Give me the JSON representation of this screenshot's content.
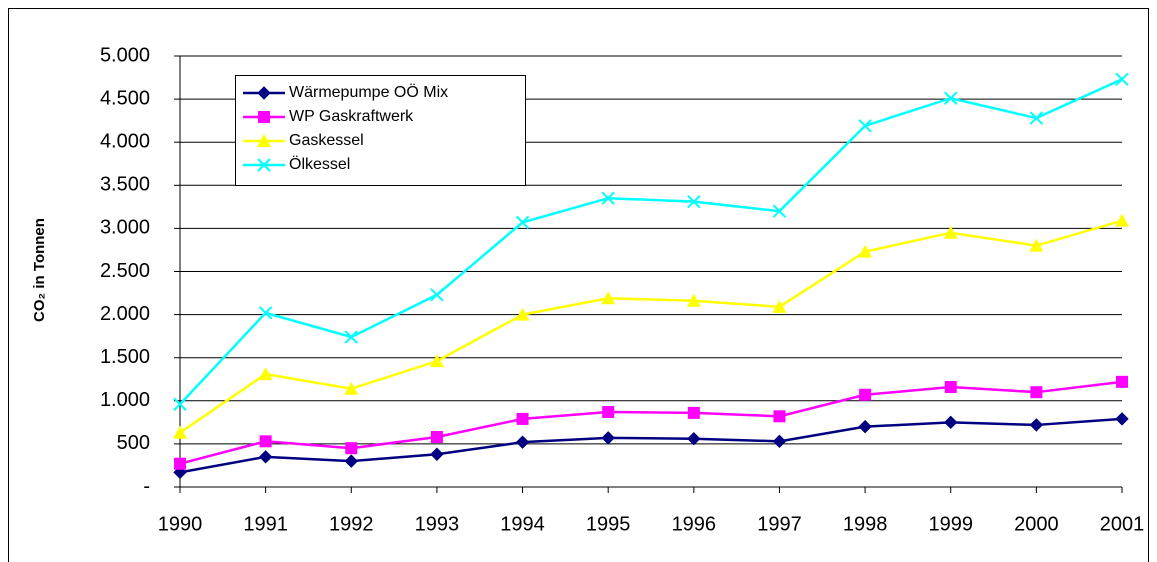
{
  "chart_data": {
    "type": "line",
    "y_label": "CO₂ in Tonnen",
    "categories": [
      "1990",
      "1991",
      "1992",
      "1993",
      "1994",
      "1995",
      "1996",
      "1997",
      "1998",
      "1999",
      "2000",
      "2001"
    ],
    "series": [
      {
        "name": "Wärmepumpe OÖ Mix",
        "color": "#000080",
        "marker": "diamond",
        "values": [
          170,
          350,
          300,
          380,
          520,
          570,
          560,
          530,
          700,
          750,
          720,
          790
        ]
      },
      {
        "name": "WP Gaskraftwerk",
        "color": "#ff00ff",
        "marker": "square",
        "values": [
          270,
          530,
          450,
          580,
          790,
          870,
          860,
          820,
          1070,
          1160,
          1100,
          1220
        ]
      },
      {
        "name": "Gaskessel",
        "color": "#ffff00",
        "marker": "triangle",
        "values": [
          630,
          1310,
          1140,
          1460,
          2000,
          2190,
          2160,
          2090,
          2730,
          2950,
          2800,
          3090
        ]
      },
      {
        "name": "Ölkessel",
        "color": "#00ffff",
        "marker": "x",
        "values": [
          960,
          2020,
          1740,
          2230,
          3070,
          3350,
          3310,
          3200,
          4190,
          4510,
          4280,
          4730
        ]
      }
    ],
    "ylim": [
      0,
      5000
    ],
    "yticks": [
      {
        "value": 0,
        "label": "-"
      },
      500,
      {
        "value": 1000,
        "label": "1.000"
      },
      {
        "value": 1500,
        "label": "1.500"
      },
      {
        "value": 2000,
        "label": "2.000"
      },
      {
        "value": 2500,
        "label": "2.500"
      },
      {
        "value": 3000,
        "label": "3.000"
      },
      {
        "value": 3500,
        "label": "3.500"
      },
      {
        "value": 4000,
        "label": "4.000"
      },
      {
        "value": 4500,
        "label": "4.500"
      },
      {
        "value": 5000,
        "label": "5.000"
      }
    ],
    "grid": true,
    "legend": "upper left"
  }
}
